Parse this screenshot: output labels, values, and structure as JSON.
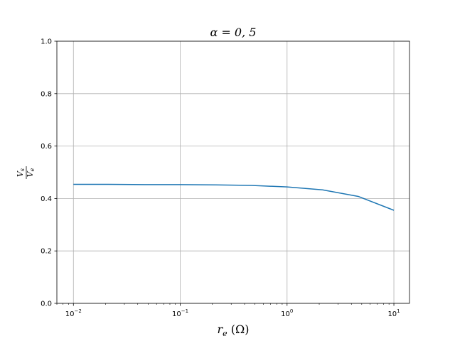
{
  "chart_data": {
    "type": "line",
    "title": "α = 0, 5",
    "xlabel": "r_e (Ω)",
    "ylabel": "V_s / V_e",
    "xscale": "log",
    "xlim": [
      0.007,
      14
    ],
    "ylim": [
      0.0,
      1.0
    ],
    "grid": true,
    "x_ticks": [
      0.01,
      0.1,
      1,
      10
    ],
    "x_tick_labels": [
      {
        "base": "10",
        "exp": "−2"
      },
      {
        "base": "10",
        "exp": "−1"
      },
      {
        "base": "10",
        "exp": "0"
      },
      {
        "base": "10",
        "exp": "1"
      }
    ],
    "y_ticks": [
      0.0,
      0.2,
      0.4,
      0.6,
      0.8,
      1.0
    ],
    "y_tick_labels": [
      "0.0",
      "0.2",
      "0.4",
      "0.6",
      "0.8",
      "1.0"
    ],
    "series": [
      {
        "color": "#1f77b4",
        "x": [
          0.01,
          0.0215,
          0.0464,
          0.1,
          0.215,
          0.464,
          1.0,
          2.15,
          4.64,
          10.0
        ],
        "y": [
          0.454,
          0.454,
          0.453,
          0.453,
          0.452,
          0.45,
          0.444,
          0.433,
          0.408,
          0.355
        ]
      }
    ]
  }
}
